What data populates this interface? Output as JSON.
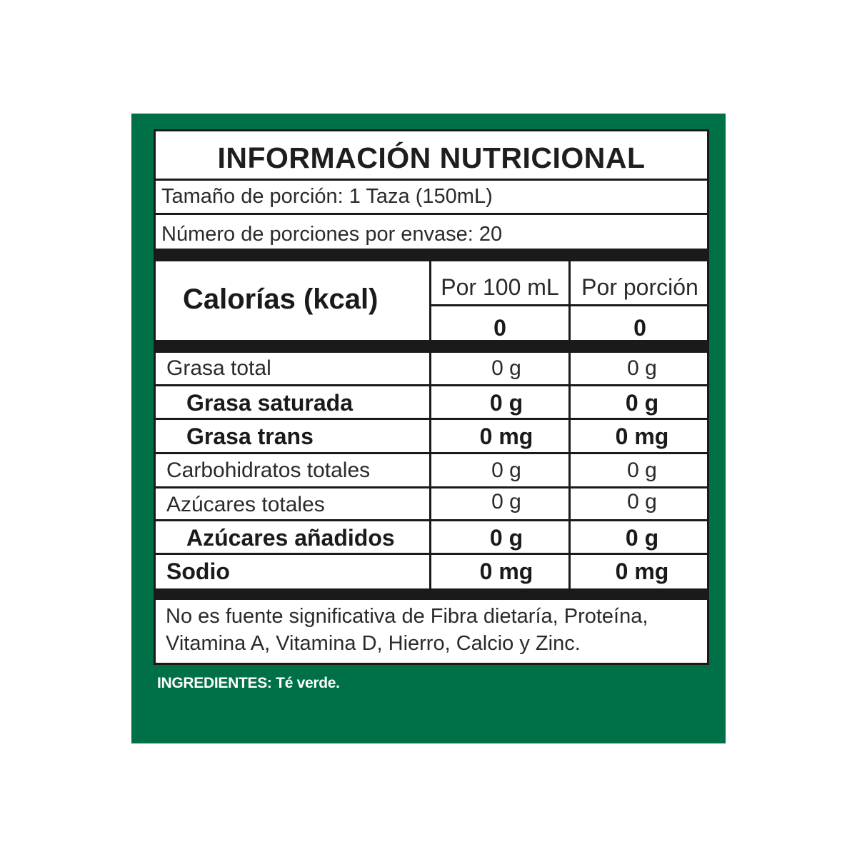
{
  "colors": {
    "panel": "#007046",
    "ingredients_text": "#ffffff",
    "rule": "#1a1a1a"
  },
  "title": "INFORMACIÓN NUTRICIONAL",
  "serving_size": "Tamaño de porción: 1 Taza (150mL)",
  "servings_per_container": "Número de porciones por envase: 20",
  "calories": {
    "label": "Calorías (kcal)",
    "col1_header": "Por 100 mL",
    "col2_header": "Por porción",
    "col1_value": "0",
    "col2_value": "0"
  },
  "nutrients": [
    {
      "name": "Grasa total",
      "per100": "0 g",
      "perPortion": "0 g"
    },
    {
      "name": "Grasa saturada",
      "per100": "0 g",
      "perPortion": "0 g"
    },
    {
      "name": "Grasa trans",
      "per100": "0 mg",
      "perPortion": "0 mg"
    },
    {
      "name": "Carbohidratos totales",
      "per100": "0 g",
      "perPortion": "0 g"
    },
    {
      "name": "Azúcares totales",
      "per100": "0 g",
      "perPortion": "0 g"
    },
    {
      "name": "Azúcares añadidos",
      "per100": "0 g",
      "perPortion": "0 g"
    },
    {
      "name": "Sodio",
      "per100": "0 mg",
      "perPortion": "0 mg"
    }
  ],
  "footer_note": "No es fuente significativa de Fibra dietaría, Proteína, Vitamina A, Vitamina D, Hierro, Calcio y Zinc.",
  "ingredients": {
    "label": "INGREDIENTES:",
    "text": "Té verde."
  }
}
